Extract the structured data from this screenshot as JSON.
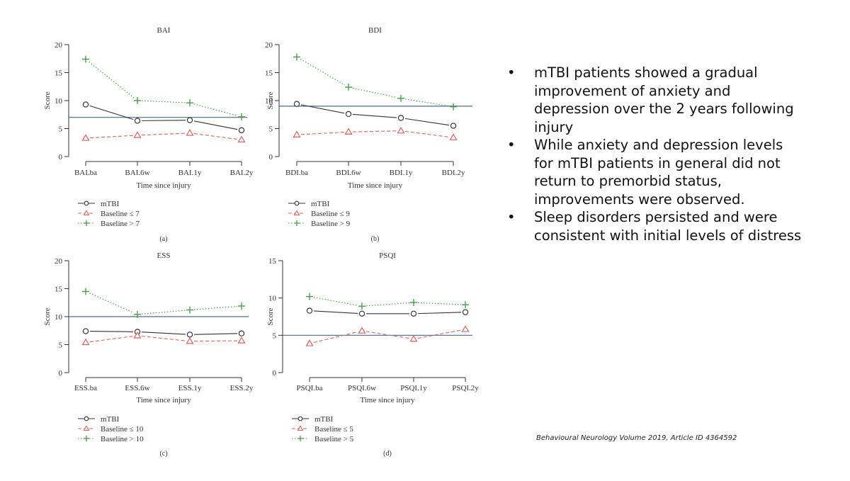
{
  "chart_data": [
    {
      "type": "line",
      "id": "a",
      "title": "BAI",
      "panel_label": "(a)",
      "xlabel": "Time since injury",
      "ylabel": "Score",
      "categories": [
        "BAI.ba",
        "BAI.6w",
        "BAI.1y",
        "BAI.2y"
      ],
      "ylim": [
        0,
        20
      ],
      "yticks": [
        0,
        5,
        10,
        15,
        20
      ],
      "reference_line": 7,
      "series": [
        {
          "name": "mTBI",
          "style": "solid-circle",
          "color": "#333333",
          "values": [
            9.3,
            6.4,
            6.5,
            4.7
          ]
        },
        {
          "name": "Baseline ≤ 7",
          "style": "dashed-triangle",
          "color": "#e06060",
          "values": [
            3.3,
            3.8,
            4.2,
            3.0
          ]
        },
        {
          "name": "Baseline > 7",
          "style": "dotted-plus",
          "color": "#3a9a3a",
          "values": [
            17.4,
            10.0,
            9.6,
            7.1
          ]
        }
      ]
    },
    {
      "type": "line",
      "id": "b",
      "title": "BDI",
      "panel_label": "(b)",
      "xlabel": "Time since injury",
      "ylabel": "Score",
      "categories": [
        "BDI.ba",
        "BDI.6w",
        "BDI.1y",
        "BDI.2y"
      ],
      "ylim": [
        0,
        20
      ],
      "yticks": [
        0,
        5,
        10,
        15,
        20
      ],
      "reference_line": 9,
      "series": [
        {
          "name": "mTBI",
          "style": "solid-circle",
          "color": "#333333",
          "values": [
            9.4,
            7.6,
            6.9,
            5.5
          ]
        },
        {
          "name": "Baseline ≤ 9",
          "style": "dashed-triangle",
          "color": "#e06060",
          "values": [
            3.9,
            4.4,
            4.6,
            3.4
          ]
        },
        {
          "name": "Baseline > 9",
          "style": "dotted-plus",
          "color": "#3a9a3a",
          "values": [
            17.8,
            12.4,
            10.4,
            8.9
          ]
        }
      ]
    },
    {
      "type": "line",
      "id": "c",
      "title": "ESS",
      "panel_label": "(c)",
      "xlabel": "Time since injury",
      "ylabel": "Score",
      "categories": [
        "ESS.ba",
        "ESS.6w",
        "ESS.1y",
        "ESS.2y"
      ],
      "ylim": [
        0,
        20
      ],
      "yticks": [
        0,
        5,
        10,
        15,
        20
      ],
      "reference_line": 10,
      "series": [
        {
          "name": "mTBI",
          "style": "solid-circle",
          "color": "#333333",
          "values": [
            7.4,
            7.3,
            6.8,
            7.0
          ]
        },
        {
          "name": "Baseline ≤ 10",
          "style": "dashed-triangle",
          "color": "#e06060",
          "values": [
            5.4,
            6.6,
            5.6,
            5.7
          ]
        },
        {
          "name": "Baseline > 10",
          "style": "dotted-plus",
          "color": "#3a9a3a",
          "values": [
            14.5,
            10.4,
            11.2,
            11.9
          ]
        }
      ]
    },
    {
      "type": "line",
      "id": "d",
      "title": "PSQI",
      "panel_label": "(d)",
      "xlabel": "Time since injury",
      "ylabel": "Score",
      "categories": [
        "PSQI.ba",
        "PSQI.6w",
        "PSQI.1y",
        "PSQI.2y"
      ],
      "ylim": [
        0,
        15
      ],
      "yticks": [
        0,
        5,
        10,
        15
      ],
      "reference_line": 5,
      "series": [
        {
          "name": "mTBI",
          "style": "solid-circle",
          "color": "#333333",
          "values": [
            8.3,
            7.9,
            7.9,
            8.1
          ]
        },
        {
          "name": "Baseline ≤ 5",
          "style": "dashed-triangle",
          "color": "#e06060",
          "values": [
            3.9,
            5.6,
            4.5,
            5.8
          ]
        },
        {
          "name": "Baseline > 5",
          "style": "dotted-plus",
          "color": "#3a9a3a",
          "values": [
            10.2,
            8.9,
            9.4,
            9.1
          ]
        }
      ]
    }
  ],
  "colors": {
    "reference_line": "#4a6b94",
    "axis": "#333333"
  },
  "bullets": [
    {
      "marker": "•",
      "text": "mTBI patients showed a gradual improvement of anxiety and depression over the 2 years following injury"
    },
    {
      "marker": "•",
      "text": "While anxiety and depression levels for mTBI patients in general did not return to premorbid status, improvements were observed."
    },
    {
      "marker": "•",
      "text": "Sleep disorders persisted and were consistent with initial levels of distress"
    }
  ],
  "citation": "Behavioural Neurology Volume 2019, Article ID 4364592"
}
